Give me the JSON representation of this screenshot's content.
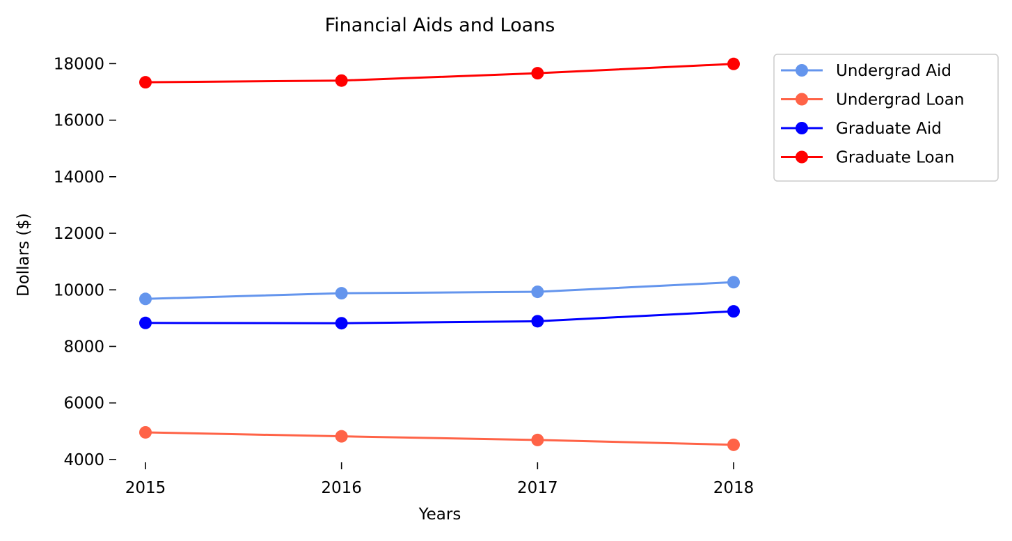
{
  "chart_data": {
    "type": "line",
    "title": "Financial Aids and Loans",
    "xlabel": "Years",
    "ylabel": "Dollars ($)",
    "categories": [
      "2015",
      "2016",
      "2017",
      "2018"
    ],
    "x": [
      2015,
      2016,
      2017,
      2018
    ],
    "yticks": [
      4000,
      6000,
      8000,
      10000,
      12000,
      14000,
      16000,
      18000
    ],
    "ylim": [
      3900,
      18600
    ],
    "grid": false,
    "legend_position": "outside-top-right",
    "series": [
      {
        "name": "Undergrad Aid",
        "color": "#6495ED",
        "values": [
          9680,
          9880,
          9930,
          10270
        ]
      },
      {
        "name": "Undergrad Loan",
        "color": "#FF6347",
        "values": [
          4960,
          4820,
          4690,
          4520
        ]
      },
      {
        "name": "Graduate Aid",
        "color": "#0000FF",
        "values": [
          8830,
          8820,
          8890,
          9240
        ]
      },
      {
        "name": "Graduate Loan",
        "color": "#FF0000",
        "values": [
          17340,
          17400,
          17660,
          17990
        ]
      }
    ]
  }
}
